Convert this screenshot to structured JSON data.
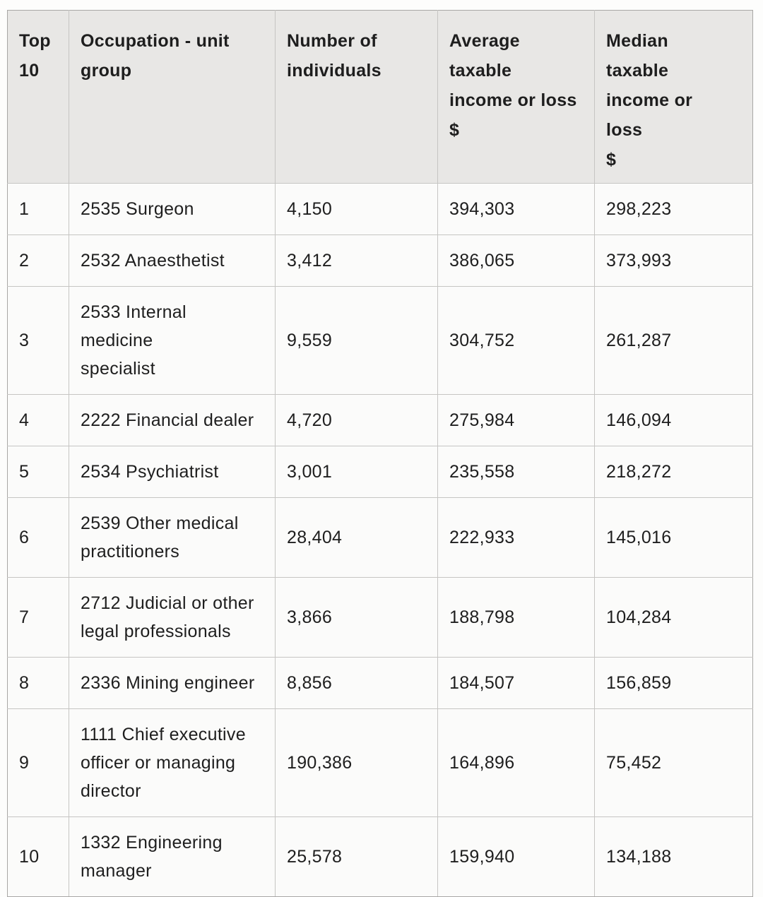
{
  "colors": {
    "page_bg": "#fdfdfc",
    "header_bg": "#e8e7e5",
    "cell_bg": "#fbfbfa",
    "border_inner": "#c6c5c3",
    "border_outer": "#a8a7a5",
    "text": "#1e1e1e"
  },
  "table": {
    "columns": [
      {
        "label": "Top\n10"
      },
      {
        "label": "Occupation - unit\ngroup"
      },
      {
        "label": "Number of\nindividuals"
      },
      {
        "label": "Average\ntaxable\nincome or loss\n$"
      },
      {
        "label": "Median\ntaxable\nincome or\nloss\n$"
      }
    ],
    "rows": [
      {
        "rank": "1",
        "occupation": "2535 Surgeon",
        "individuals": "4,150",
        "average": "394,303",
        "median": "298,223"
      },
      {
        "rank": "2",
        "occupation": "2532 Anaesthetist",
        "individuals": "3,412",
        "average": "386,065",
        "median": "373,993"
      },
      {
        "rank": "3",
        "occupation": "2533 Internal medicine\nspecialist",
        "individuals": "9,559",
        "average": "304,752",
        "median": "261,287"
      },
      {
        "rank": "4",
        "occupation": "2222 Financial dealer",
        "individuals": "4,720",
        "average": "275,984",
        "median": "146,094"
      },
      {
        "rank": "5",
        "occupation": "2534 Psychiatrist",
        "individuals": "3,001",
        "average": "235,558",
        "median": "218,272"
      },
      {
        "rank": "6",
        "occupation": "2539 Other medical\npractitioners",
        "individuals": "28,404",
        "average": "222,933",
        "median": "145,016"
      },
      {
        "rank": "7",
        "occupation": "2712 Judicial or other\nlegal professionals",
        "individuals": "3,866",
        "average": "188,798",
        "median": "104,284"
      },
      {
        "rank": "8",
        "occupation": "2336 Mining engineer",
        "individuals": "8,856",
        "average": "184,507",
        "median": "156,859"
      },
      {
        "rank": "9",
        "occupation": "1111 Chief executive\nofficer or managing\ndirector",
        "individuals": "190,386",
        "average": "164,896",
        "median": "75,452"
      },
      {
        "rank": "10",
        "occupation": "1332 Engineering\nmanager",
        "individuals": "25,578",
        "average": "159,940",
        "median": "134,188"
      }
    ]
  }
}
